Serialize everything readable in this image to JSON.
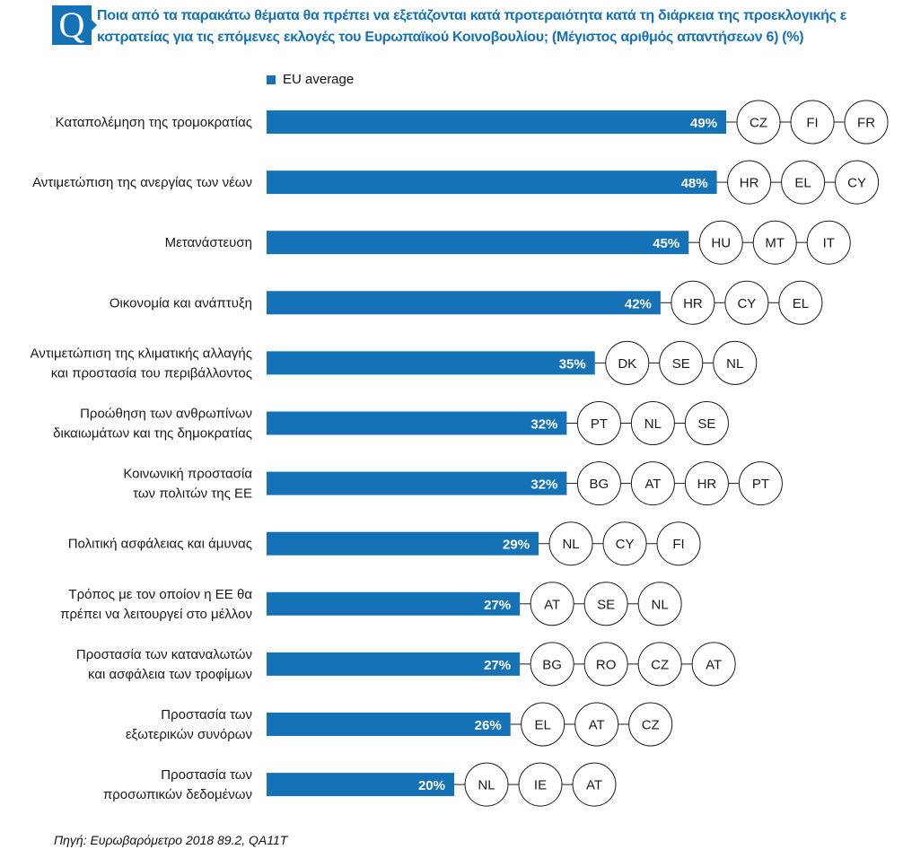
{
  "header": {
    "q_letter": "Q",
    "title": "Ποια από τα παρακάτω θέματα θα πρέπει να εξετάζονται κατά προτεραιότητα κατά τη διάρκεια της προεκλογικής ε κστρατείας για τις επόμενες εκλογές του Ευρωπαϊκού Κοινοβουλίου;  (Μέγιστος αριθμός απαντήσεων 6) (%)"
  },
  "source": "Πηγή: Ευρωβαρόμετρο 2018 89.2, QA11T",
  "colors": {
    "bar": "#1672b6",
    "title": "#1672b6"
  },
  "chart_data": {
    "type": "bar",
    "orientation": "horizontal",
    "legend": [
      "EU average"
    ],
    "unit": "%",
    "categories": [
      {
        "label": [
          "Καταπολέμηση της τρομοκρατίας"
        ],
        "value": 49,
        "value_label": "49%",
        "countries": [
          "CZ",
          "FI",
          "FR"
        ]
      },
      {
        "label": [
          "Αντιμετώπιση της ανεργίας των νέων"
        ],
        "value": 48,
        "value_label": "48%",
        "countries": [
          "HR",
          "EL",
          "CY"
        ]
      },
      {
        "label": [
          "Μετανάστευση"
        ],
        "value": 45,
        "value_label": "45%",
        "countries": [
          "HU",
          "MT",
          "IT"
        ]
      },
      {
        "label": [
          "Οικονομία και ανάπτυξη"
        ],
        "value": 42,
        "value_label": "42%",
        "countries": [
          "HR",
          "CY",
          "EL"
        ]
      },
      {
        "label": [
          "Αντιμετώπιση της κλιματικής αλλαγής",
          "και προστασία του περιβάλλοντος"
        ],
        "value": 35,
        "value_label": "35%",
        "countries": [
          "DK",
          "SE",
          "NL"
        ]
      },
      {
        "label": [
          "Προώθηση των ανθρωπίνων",
          "δικαιωμάτων και της δημοκρατίας"
        ],
        "value": 32,
        "value_label": "32%",
        "countries": [
          "PT",
          "NL",
          "SE"
        ]
      },
      {
        "label": [
          "Κοινωνική προστασία",
          "των πολιτών της ΕΕ"
        ],
        "value": 32,
        "value_label": "32%",
        "countries": [
          "BG",
          "AT",
          "HR",
          "PT"
        ]
      },
      {
        "label": [
          "Πολιτική ασφάλειας και άμυνας"
        ],
        "value": 29,
        "value_label": "29%",
        "countries": [
          "NL",
          "CY",
          "FI"
        ]
      },
      {
        "label": [
          "Τρόπος με τον οποίον η ΕΕ θα",
          "πρέπει να λειτουργεί στο μέλλον"
        ],
        "value": 27,
        "value_label": "27%",
        "countries": [
          "AT",
          "SE",
          "NL"
        ]
      },
      {
        "label": [
          "Προστασία των καταναλωτών",
          "και ασφάλεια των τροφίμων"
        ],
        "value": 27,
        "value_label": "27%",
        "countries": [
          "BG",
          "RO",
          "CZ",
          "AT"
        ]
      },
      {
        "label": [
          "Προστασία των",
          "εξωτερικών συνόρων"
        ],
        "value": 26,
        "value_label": "26%",
        "countries": [
          "EL",
          "AT",
          "CZ"
        ]
      },
      {
        "label": [
          "Προστασία των",
          "προσωπικών δεδομένων"
        ],
        "value": 20,
        "value_label": "20%",
        "countries": [
          "NL",
          "IE",
          "AT"
        ]
      }
    ]
  }
}
